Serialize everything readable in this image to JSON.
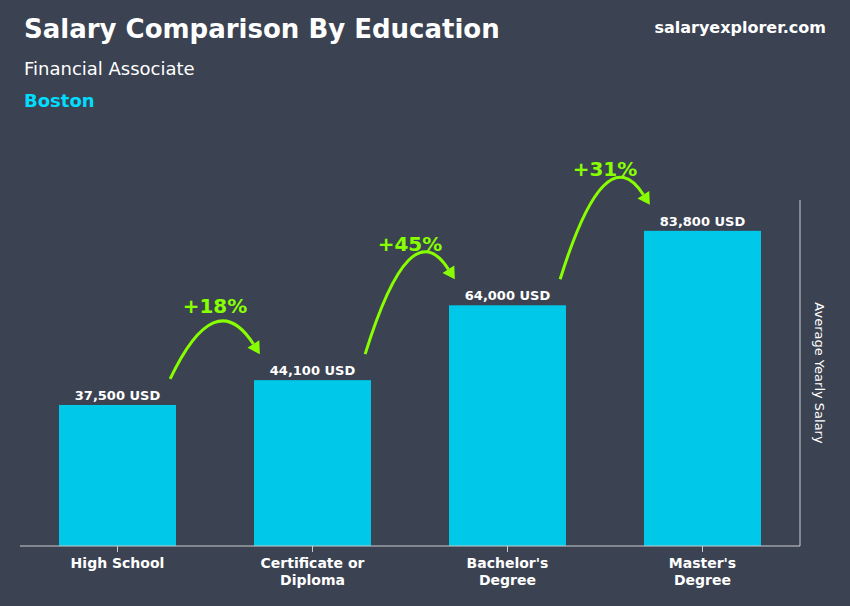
{
  "chart_data": {
    "type": "bar",
    "title": "Salary Comparison By Education",
    "subtitle": "Financial Associate",
    "ylabel": "Average Yearly Salary",
    "categories": [
      "High School",
      "Certificate or\nDiploma",
      "Bachelor's\nDegree",
      "Master's\nDegree"
    ],
    "values": [
      37500,
      44100,
      64000,
      83800
    ],
    "value_labels": [
      "37,500 USD",
      "44,100 USD",
      "64,000 USD",
      "83,800 USD"
    ],
    "data_labels": true,
    "color": "#00c8e8",
    "ylim": [
      0,
      92000
    ],
    "tick_labels": "x",
    "grid": false,
    "annotations": [
      {
        "text": "Boston",
        "color": "#00ddff"
      },
      {
        "text": "salaryexplorer.com"
      },
      {
        "text": "+18%",
        "from_bar": 0,
        "to_bar": 1,
        "color": "#88ff00"
      },
      {
        "text": "+45%",
        "from_bar": 1,
        "to_bar": 2,
        "color": "#88ff00"
      },
      {
        "text": "+31%",
        "from_bar": 2,
        "to_bar": 3,
        "color": "#88ff00"
      }
    ]
  }
}
